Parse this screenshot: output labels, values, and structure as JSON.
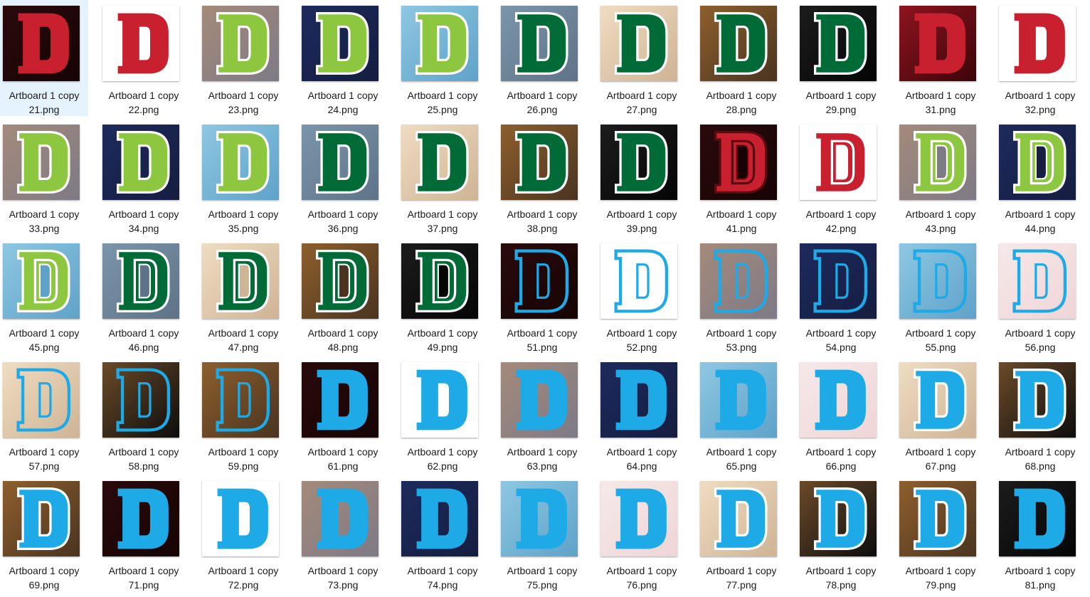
{
  "files": [
    {
      "name": "Artboard 1 copy\n21.png",
      "bg": "dark-red",
      "letter": "solid",
      "fill": "#c8202f",
      "outline": "",
      "selected": true
    },
    {
      "name": "Artboard 1 copy\n22.png",
      "bg": "white",
      "letter": "solid",
      "fill": "#c8202f",
      "outline": ""
    },
    {
      "name": "Artboard 1 copy\n23.png",
      "bg": "tan-pixel",
      "letter": "outlined",
      "fill": "#8dc63f",
      "outline": "#ffffff"
    },
    {
      "name": "Artboard 1 copy\n24.png",
      "bg": "navy",
      "letter": "outlined",
      "fill": "#8dc63f",
      "outline": "#ffffff"
    },
    {
      "name": "Artboard 1 copy\n25.png",
      "bg": "sky",
      "letter": "outlined",
      "fill": "#8dc63f",
      "outline": "#ffffff"
    },
    {
      "name": "Artboard 1 copy\n26.png",
      "bg": "blue-grey-pixel",
      "letter": "outlined",
      "fill": "#006b36",
      "outline": "#ffffff"
    },
    {
      "name": "Artboard 1 copy\n27.png",
      "bg": "postal",
      "letter": "outlined",
      "fill": "#006b36",
      "outline": "#ffffff"
    },
    {
      "name": "Artboard 1 copy\n28.png",
      "bg": "brown",
      "letter": "outlined",
      "fill": "#006b36",
      "outline": "#ffffff"
    },
    {
      "name": "Artboard 1 copy\n29.png",
      "bg": "black",
      "letter": "outlined",
      "fill": "#006b36",
      "outline": "#ffffff"
    },
    {
      "name": "Artboard 1 copy\n31.png",
      "bg": "red-blur",
      "letter": "solid",
      "fill": "#c8202f",
      "outline": ""
    },
    {
      "name": "Artboard 1 copy\n32.png",
      "bg": "white",
      "letter": "solid",
      "fill": "#c8202f",
      "outline": ""
    },
    {
      "name": "Artboard 1 copy\n33.png",
      "bg": "tan-pixel",
      "letter": "outlined",
      "fill": "#8dc63f",
      "outline": "#ffffff"
    },
    {
      "name": "Artboard 1 copy\n34.png",
      "bg": "navy",
      "letter": "outlined",
      "fill": "#8dc63f",
      "outline": "#ffffff"
    },
    {
      "name": "Artboard 1 copy\n35.png",
      "bg": "sky",
      "letter": "outlined",
      "fill": "#8dc63f",
      "outline": "#ffffff"
    },
    {
      "name": "Artboard 1 copy\n36.png",
      "bg": "blue-grey-pixel",
      "letter": "outlined",
      "fill": "#006b36",
      "outline": "#ffffff"
    },
    {
      "name": "Artboard 1 copy\n37.png",
      "bg": "postal",
      "letter": "outlined",
      "fill": "#006b36",
      "outline": "#ffffff"
    },
    {
      "name": "Artboard 1 copy\n38.png",
      "bg": "brown",
      "letter": "outlined",
      "fill": "#006b36",
      "outline": "#ffffff"
    },
    {
      "name": "Artboard 1 copy\n39.png",
      "bg": "black",
      "letter": "outlined",
      "fill": "#006b36",
      "outline": "#ffffff"
    },
    {
      "name": "Artboard 1 copy\n41.png",
      "bg": "dark-red",
      "letter": "double",
      "fill": "#c8202f",
      "outline": "#5a0b10"
    },
    {
      "name": "Artboard 1 copy\n42.png",
      "bg": "white",
      "letter": "double",
      "fill": "#c8202f",
      "outline": "#ffffff"
    },
    {
      "name": "Artboard 1 copy\n43.png",
      "bg": "tan-pixel",
      "letter": "double",
      "fill": "#8dc63f",
      "outline": "#ffffff"
    },
    {
      "name": "Artboard 1 copy\n44.png",
      "bg": "navy",
      "letter": "double",
      "fill": "#8dc63f",
      "outline": "#ffffff"
    },
    {
      "name": "Artboard 1 copy\n45.png",
      "bg": "sky",
      "letter": "double",
      "fill": "#8dc63f",
      "outline": "#ffffff"
    },
    {
      "name": "Artboard 1 copy\n46.png",
      "bg": "blue-grey-pixel",
      "letter": "double",
      "fill": "#006b36",
      "outline": "#ffffff"
    },
    {
      "name": "Artboard 1 copy\n47.png",
      "bg": "postal",
      "letter": "double",
      "fill": "#006b36",
      "outline": "#ffffff"
    },
    {
      "name": "Artboard 1 copy\n48.png",
      "bg": "brown",
      "letter": "double",
      "fill": "#006b36",
      "outline": "#ffffff"
    },
    {
      "name": "Artboard 1 copy\n49.png",
      "bg": "black",
      "letter": "double",
      "fill": "#006b36",
      "outline": "#ffffff"
    },
    {
      "name": "Artboard 1 copy\n51.png",
      "bg": "dark-red",
      "letter": "hollow",
      "fill": "#1eaae6",
      "outline": ""
    },
    {
      "name": "Artboard 1 copy\n52.png",
      "bg": "white",
      "letter": "hollow",
      "fill": "#1eaae6",
      "outline": ""
    },
    {
      "name": "Artboard 1 copy\n53.png",
      "bg": "tan-pixel",
      "letter": "hollow",
      "fill": "#1eaae6",
      "outline": ""
    },
    {
      "name": "Artboard 1 copy\n54.png",
      "bg": "navy",
      "letter": "hollow",
      "fill": "#1eaae6",
      "outline": ""
    },
    {
      "name": "Artboard 1 copy\n55.png",
      "bg": "sky",
      "letter": "hollow",
      "fill": "#1eaae6",
      "outline": ""
    },
    {
      "name": "Artboard 1 copy\n56.png",
      "bg": "pink-map",
      "letter": "hollow",
      "fill": "#1eaae6",
      "outline": ""
    },
    {
      "name": "Artboard 1 copy\n57.png",
      "bg": "postal",
      "letter": "hollow",
      "fill": "#1eaae6",
      "outline": ""
    },
    {
      "name": "Artboard 1 copy\n58.png",
      "bg": "brown-black",
      "letter": "hollow",
      "fill": "#1eaae6",
      "outline": ""
    },
    {
      "name": "Artboard 1 copy\n59.png",
      "bg": "brown",
      "letter": "hollow",
      "fill": "#1eaae6",
      "outline": ""
    },
    {
      "name": "Artboard 1 copy\n61.png",
      "bg": "dark-red",
      "letter": "solid",
      "fill": "#1eaae6",
      "outline": ""
    },
    {
      "name": "Artboard 1 copy\n62.png",
      "bg": "white",
      "letter": "solid",
      "fill": "#1eaae6",
      "outline": ""
    },
    {
      "name": "Artboard 1 copy\n63.png",
      "bg": "tan-pixel",
      "letter": "solid",
      "fill": "#1eaae6",
      "outline": ""
    },
    {
      "name": "Artboard 1 copy\n64.png",
      "bg": "navy",
      "letter": "solid",
      "fill": "#1eaae6",
      "outline": ""
    },
    {
      "name": "Artboard 1 copy\n65.png",
      "bg": "sky",
      "letter": "solid",
      "fill": "#1eaae6",
      "outline": ""
    },
    {
      "name": "Artboard 1 copy\n66.png",
      "bg": "pink-map",
      "letter": "solid",
      "fill": "#1eaae6",
      "outline": ""
    },
    {
      "name": "Artboard 1 copy\n67.png",
      "bg": "postal",
      "letter": "outlined",
      "fill": "#1eaae6",
      "outline": "#ffffff"
    },
    {
      "name": "Artboard 1 copy\n68.png",
      "bg": "brown-black",
      "letter": "outlined",
      "fill": "#1eaae6",
      "outline": "#ffffff"
    },
    {
      "name": "Artboard 1 copy\n69.png",
      "bg": "brown",
      "letter": "outlined",
      "fill": "#1eaae6",
      "outline": "#ffffff"
    },
    {
      "name": "Artboard 1 copy\n71.png",
      "bg": "dark-red",
      "letter": "solid",
      "fill": "#1eaae6",
      "outline": ""
    },
    {
      "name": "Artboard 1 copy\n72.png",
      "bg": "white",
      "letter": "solid",
      "fill": "#1eaae6",
      "outline": ""
    },
    {
      "name": "Artboard 1 copy\n73.png",
      "bg": "tan-pixel",
      "letter": "solid",
      "fill": "#1eaae6",
      "outline": ""
    },
    {
      "name": "Artboard 1 copy\n74.png",
      "bg": "navy",
      "letter": "solid",
      "fill": "#1eaae6",
      "outline": ""
    },
    {
      "name": "Artboard 1 copy\n75.png",
      "bg": "sky",
      "letter": "solid",
      "fill": "#1eaae6",
      "outline": ""
    },
    {
      "name": "Artboard 1 copy\n76.png",
      "bg": "pink-map",
      "letter": "solid",
      "fill": "#1eaae6",
      "outline": ""
    },
    {
      "name": "Artboard 1 copy\n77.png",
      "bg": "postal",
      "letter": "outlined",
      "fill": "#1eaae6",
      "outline": "#ffffff"
    },
    {
      "name": "Artboard 1 copy\n78.png",
      "bg": "brown-black",
      "letter": "outlined",
      "fill": "#1eaae6",
      "outline": "#ffffff"
    },
    {
      "name": "Artboard 1 copy\n79.png",
      "bg": "brown",
      "letter": "outlined",
      "fill": "#1eaae6",
      "outline": "#ffffff"
    },
    {
      "name": "Artboard 1 copy\n81.png",
      "bg": "black",
      "letter": "solid",
      "fill": "#1eaae6",
      "outline": ""
    }
  ],
  "backgrounds": {
    "dark-red": [
      "#2a0a0c",
      "#160404"
    ],
    "white": [
      "#ffffff",
      "#ffffff"
    ],
    "tan-pixel": [
      "#a48a7a",
      "#7e7a86"
    ],
    "navy": [
      "#1d2a5c",
      "#151d40"
    ],
    "sky": [
      "#8ec7e2",
      "#5fa2c9"
    ],
    "blue-grey-pixel": [
      "#7c95ab",
      "#5e7387"
    ],
    "postal": [
      "#efdcc1",
      "#cfb495"
    ],
    "brown": [
      "#8e5f2d",
      "#4a3420"
    ],
    "black": [
      "#1c1c1c",
      "#050505"
    ],
    "red-blur": [
      "#8e1420",
      "#3b0508"
    ],
    "pink-map": [
      "#f6e9e9",
      "#efd5d7"
    ],
    "brown-black": [
      "#6b4a28",
      "#0d0d0d"
    ]
  }
}
